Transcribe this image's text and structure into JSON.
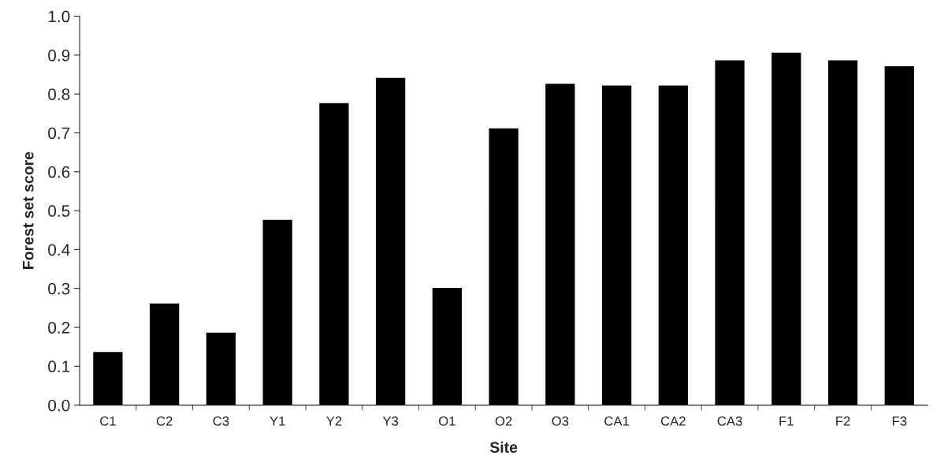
{
  "chart_data": {
    "type": "bar",
    "xlabel": "Site",
    "ylabel": "Forest set score",
    "categories": [
      "C1",
      "C2",
      "C3",
      "Y1",
      "Y2",
      "Y3",
      "O1",
      "O2",
      "O3",
      "CA1",
      "CA2",
      "CA3",
      "F1",
      "F2",
      "F3"
    ],
    "values": [
      0.135,
      0.26,
      0.185,
      0.475,
      0.775,
      0.84,
      0.3,
      0.71,
      0.825,
      0.82,
      0.82,
      0.885,
      0.905,
      0.885,
      0.87
    ],
    "color": "#000000",
    "ylim": [
      0,
      1.0
    ],
    "yticks": [
      {
        "value": 0,
        "label": "0.0"
      },
      {
        "value": 0.1,
        "label": "0.1"
      },
      {
        "value": 0.2,
        "label": "0.2"
      },
      {
        "value": 0.3,
        "label": "0.3"
      },
      {
        "value": 0.4,
        "label": "0.4"
      },
      {
        "value": 0.5,
        "label": "0.5"
      },
      {
        "value": 0.6,
        "label": "0.6"
      },
      {
        "value": 0.7,
        "label": "0.7"
      },
      {
        "value": 0.8,
        "label": "0.8"
      },
      {
        "value": 0.9,
        "label": "0.9"
      },
      {
        "value": 1.0,
        "label": "1.0"
      }
    ],
    "grid": false
  }
}
